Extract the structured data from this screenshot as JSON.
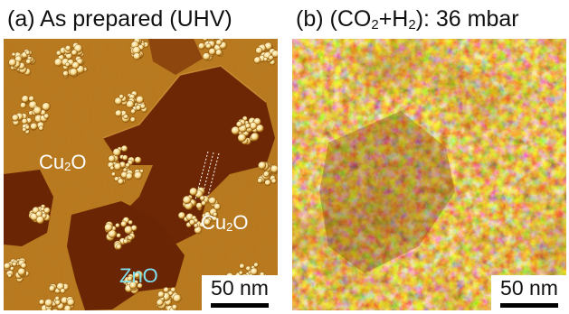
{
  "panel_a": {
    "label": "(a)",
    "title_text": "As prepared (UHV)",
    "annotations": {
      "cu2o_left_base": "Cu",
      "cu2o_left_sub": "2",
      "cu2o_left_tail": "O",
      "cu2o_right_base": "Cu",
      "cu2o_right_sub": "2",
      "cu2o_right_tail": "O",
      "zno": "ZnO"
    },
    "scale_bar": "50 nm"
  },
  "panel_b": {
    "label": "(b)",
    "title_pre": "(CO",
    "title_sub1": "2",
    "title_mid": "+H",
    "title_sub2": "2",
    "title_post": "): 36 mbar",
    "scale_bar": "50 nm"
  },
  "colors": {
    "terrace_light": "#b8771c",
    "terrace_dark": "#6a2504",
    "cluster_bright": "#fff0c2",
    "annotation_white": "#ffffff",
    "annotation_zno": "#7fe0ee",
    "surface_b_base": "#a4650f"
  }
}
